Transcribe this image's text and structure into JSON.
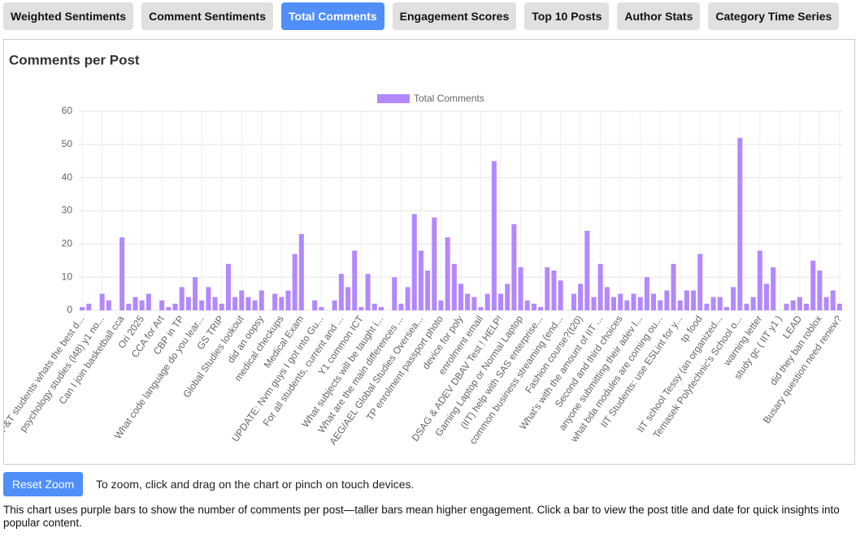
{
  "tabs": [
    "Weighted Sentiments",
    "Comment Sentiments",
    "Total Comments",
    "Engagement Scores",
    "Top 10 Posts",
    "Author Stats",
    "Category Time Series"
  ],
  "chart_data": {
    "type": "bar",
    "title": "Comments per Post",
    "series": [
      {
        "name": "Total Comments",
        "color": "#b388ff",
        "values": [
          1,
          2,
          0,
          5,
          3,
          0,
          22,
          2,
          4,
          3,
          5,
          0,
          3,
          1,
          2,
          7,
          4,
          10,
          3,
          7,
          4,
          2,
          14,
          4,
          6,
          4,
          3,
          6,
          0,
          5,
          4,
          6,
          17,
          23,
          0,
          3,
          1,
          0,
          3,
          11,
          7,
          18,
          1,
          11,
          2,
          1,
          0,
          10,
          2,
          7,
          29,
          18,
          12,
          28,
          3,
          22,
          14,
          8,
          5,
          4,
          1,
          5,
          45,
          5,
          8,
          26,
          13,
          3,
          2,
          1,
          13,
          12,
          9,
          0,
          5,
          8,
          24,
          4,
          14,
          7,
          4,
          5,
          3,
          5,
          4,
          10,
          5,
          3,
          6,
          14,
          3,
          6,
          6,
          17,
          2,
          4,
          4,
          1,
          7,
          52,
          2,
          4,
          18,
          8,
          13,
          0,
          2,
          3,
          4,
          2,
          15,
          12,
          4,
          6,
          2
        ]
      }
    ],
    "categories": [
      "DF&T students whats the best d...",
      null,
      null,
      "psychology studies (l48) y1 no...",
      null,
      null,
      "Can I join basketball cca",
      null,
      null,
      "Ori 2025",
      null,
      null,
      "CCA for Art",
      null,
      null,
      "CBP in TP",
      null,
      null,
      "What code language do you lear...",
      null,
      null,
      "GS TRIP",
      null,
      null,
      "Global Studies lookout",
      null,
      null,
      "did an oopsy",
      null,
      null,
      "medical checkups",
      null,
      null,
      "Medical Exam",
      null,
      null,
      "UPDATE: Nvm guys I got into Gu...",
      null,
      null,
      "For all students, current and ...",
      null,
      null,
      "Y1 common ICT",
      null,
      null,
      "What subjects will be taught i...",
      null,
      null,
      "What are the main differences ...",
      null,
      null,
      "AEG/AEL Global Studies Oversea...",
      null,
      null,
      "TP enrolment passport photo",
      null,
      null,
      "device for poly",
      null,
      null,
      "enrolment email",
      null,
      null,
      "DSAG & ADEV DBAV Test ! HELP!",
      null,
      null,
      "Gaming Laptop or Normal Laptop",
      null,
      null,
      "(IIT) help with SAS enterprise...",
      null,
      null,
      "common business streaming (end...",
      null,
      null,
      "Fashion course?(t20)",
      null,
      null,
      "What's with the amount of IIT ...",
      null,
      null,
      "Second and third choices",
      null,
      null,
      "anyone submitting their adev l...",
      null,
      null,
      "what bda modules are coming ou...",
      null,
      null,
      "IIT Students: use ESLint for y...",
      null,
      null,
      "tp food",
      null,
      null,
      "IIT school Tessy (an organized...",
      null,
      null,
      "Temasek Polytechnic's School o...",
      null,
      null,
      "warning letter",
      null,
      null,
      "study gc ( IIT y1 )",
      null,
      null,
      "LEAD",
      null,
      null,
      "did they ban roblox",
      null,
      null,
      "Busary question need renew?"
    ],
    "ylim": [
      0,
      60
    ],
    "yticks": [
      0,
      10,
      20,
      30,
      40,
      50,
      60
    ],
    "grid": true,
    "legend": "top"
  },
  "reset_button": "Reset Zoom",
  "zoom_hint": "To zoom, click and drag on the chart or pinch on touch devices.",
  "description": "This chart uses purple bars to show the number of comments per post—taller bars mean higher engagement. Click a bar to view the post title and date for quick insights into popular content."
}
